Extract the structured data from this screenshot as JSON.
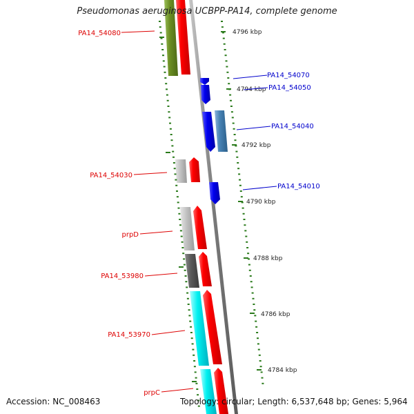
{
  "title": "Pseudomonas aeruginosa UCBPP-PA14, complete genome",
  "footer": {
    "accession": "Accession: NC_008463",
    "stats": "Topology: circular; Length: 6,537,648 bp; Genes: 5,964"
  },
  "colors": {
    "backbone": "#8a8a8a",
    "forward_label": "#dd0000",
    "reverse_label": "#0000cc",
    "tick": "#2a7a1a"
  },
  "kbp_labels": [
    "4796 kbp",
    "4794 kbp",
    "4792 kbp",
    "4790 kbp",
    "4788 kbp",
    "4786 kbp",
    "4784 kbp"
  ],
  "gene_labels": {
    "left": [
      "PA14_54080",
      "PA14_54030",
      "prpD",
      "PA14_53980",
      "PA14_53970",
      "prpC"
    ],
    "right": [
      "PA14_54070",
      "PA14_54050",
      "PA14_54040",
      "PA14_54010"
    ]
  }
}
